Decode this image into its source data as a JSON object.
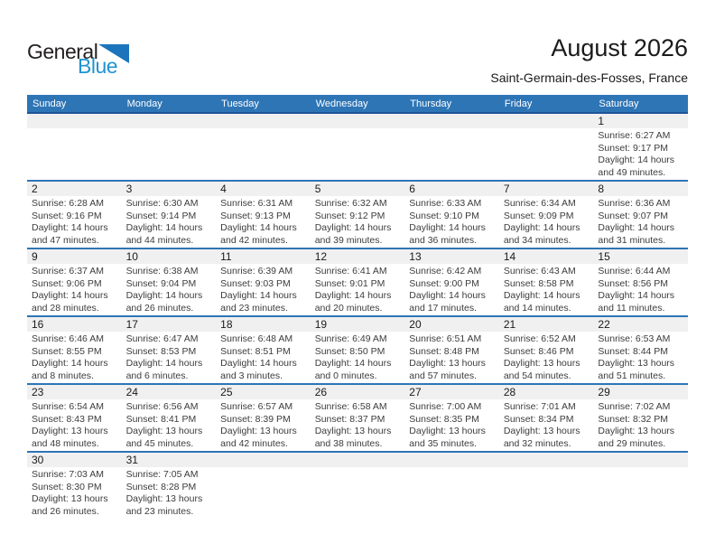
{
  "logo": {
    "general": "General",
    "blue": "Blue"
  },
  "header": {
    "title": "August 2026",
    "subtitle": "Saint-Germain-des-Fosses, France"
  },
  "colors": {
    "header_blue": "#2E75B6",
    "header_underline": "#1F5597",
    "week_separator": "#2E75B6",
    "day_strip_gray": "#F0F0F0",
    "logo_triangle_blue": "#1C75BC",
    "logo_blue_text": "#2193D1"
  },
  "calendar": {
    "weekdays": [
      "Sunday",
      "Monday",
      "Tuesday",
      "Wednesday",
      "Thursday",
      "Friday",
      "Saturday"
    ],
    "weeks": [
      [
        null,
        null,
        null,
        null,
        null,
        null,
        {
          "day": "1",
          "sunrise": "Sunrise: 6:27 AM",
          "sunset": "Sunset: 9:17 PM",
          "daylight_a": "Daylight: 14 hours",
          "daylight_b": "and 49 minutes."
        }
      ],
      [
        {
          "day": "2",
          "sunrise": "Sunrise: 6:28 AM",
          "sunset": "Sunset: 9:16 PM",
          "daylight_a": "Daylight: 14 hours",
          "daylight_b": "and 47 minutes."
        },
        {
          "day": "3",
          "sunrise": "Sunrise: 6:30 AM",
          "sunset": "Sunset: 9:14 PM",
          "daylight_a": "Daylight: 14 hours",
          "daylight_b": "and 44 minutes."
        },
        {
          "day": "4",
          "sunrise": "Sunrise: 6:31 AM",
          "sunset": "Sunset: 9:13 PM",
          "daylight_a": "Daylight: 14 hours",
          "daylight_b": "and 42 minutes."
        },
        {
          "day": "5",
          "sunrise": "Sunrise: 6:32 AM",
          "sunset": "Sunset: 9:12 PM",
          "daylight_a": "Daylight: 14 hours",
          "daylight_b": "and 39 minutes."
        },
        {
          "day": "6",
          "sunrise": "Sunrise: 6:33 AM",
          "sunset": "Sunset: 9:10 PM",
          "daylight_a": "Daylight: 14 hours",
          "daylight_b": "and 36 minutes."
        },
        {
          "day": "7",
          "sunrise": "Sunrise: 6:34 AM",
          "sunset": "Sunset: 9:09 PM",
          "daylight_a": "Daylight: 14 hours",
          "daylight_b": "and 34 minutes."
        },
        {
          "day": "8",
          "sunrise": "Sunrise: 6:36 AM",
          "sunset": "Sunset: 9:07 PM",
          "daylight_a": "Daylight: 14 hours",
          "daylight_b": "and 31 minutes."
        }
      ],
      [
        {
          "day": "9",
          "sunrise": "Sunrise: 6:37 AM",
          "sunset": "Sunset: 9:06 PM",
          "daylight_a": "Daylight: 14 hours",
          "daylight_b": "and 28 minutes."
        },
        {
          "day": "10",
          "sunrise": "Sunrise: 6:38 AM",
          "sunset": "Sunset: 9:04 PM",
          "daylight_a": "Daylight: 14 hours",
          "daylight_b": "and 26 minutes."
        },
        {
          "day": "11",
          "sunrise": "Sunrise: 6:39 AM",
          "sunset": "Sunset: 9:03 PM",
          "daylight_a": "Daylight: 14 hours",
          "daylight_b": "and 23 minutes."
        },
        {
          "day": "12",
          "sunrise": "Sunrise: 6:41 AM",
          "sunset": "Sunset: 9:01 PM",
          "daylight_a": "Daylight: 14 hours",
          "daylight_b": "and 20 minutes."
        },
        {
          "day": "13",
          "sunrise": "Sunrise: 6:42 AM",
          "sunset": "Sunset: 9:00 PM",
          "daylight_a": "Daylight: 14 hours",
          "daylight_b": "and 17 minutes."
        },
        {
          "day": "14",
          "sunrise": "Sunrise: 6:43 AM",
          "sunset": "Sunset: 8:58 PM",
          "daylight_a": "Daylight: 14 hours",
          "daylight_b": "and 14 minutes."
        },
        {
          "day": "15",
          "sunrise": "Sunrise: 6:44 AM",
          "sunset": "Sunset: 8:56 PM",
          "daylight_a": "Daylight: 14 hours",
          "daylight_b": "and 11 minutes."
        }
      ],
      [
        {
          "day": "16",
          "sunrise": "Sunrise: 6:46 AM",
          "sunset": "Sunset: 8:55 PM",
          "daylight_a": "Daylight: 14 hours",
          "daylight_b": "and 8 minutes."
        },
        {
          "day": "17",
          "sunrise": "Sunrise: 6:47 AM",
          "sunset": "Sunset: 8:53 PM",
          "daylight_a": "Daylight: 14 hours",
          "daylight_b": "and 6 minutes."
        },
        {
          "day": "18",
          "sunrise": "Sunrise: 6:48 AM",
          "sunset": "Sunset: 8:51 PM",
          "daylight_a": "Daylight: 14 hours",
          "daylight_b": "and 3 minutes."
        },
        {
          "day": "19",
          "sunrise": "Sunrise: 6:49 AM",
          "sunset": "Sunset: 8:50 PM",
          "daylight_a": "Daylight: 14 hours",
          "daylight_b": "and 0 minutes."
        },
        {
          "day": "20",
          "sunrise": "Sunrise: 6:51 AM",
          "sunset": "Sunset: 8:48 PM",
          "daylight_a": "Daylight: 13 hours",
          "daylight_b": "and 57 minutes."
        },
        {
          "day": "21",
          "sunrise": "Sunrise: 6:52 AM",
          "sunset": "Sunset: 8:46 PM",
          "daylight_a": "Daylight: 13 hours",
          "daylight_b": "and 54 minutes."
        },
        {
          "day": "22",
          "sunrise": "Sunrise: 6:53 AM",
          "sunset": "Sunset: 8:44 PM",
          "daylight_a": "Daylight: 13 hours",
          "daylight_b": "and 51 minutes."
        }
      ],
      [
        {
          "day": "23",
          "sunrise": "Sunrise: 6:54 AM",
          "sunset": "Sunset: 8:43 PM",
          "daylight_a": "Daylight: 13 hours",
          "daylight_b": "and 48 minutes."
        },
        {
          "day": "24",
          "sunrise": "Sunrise: 6:56 AM",
          "sunset": "Sunset: 8:41 PM",
          "daylight_a": "Daylight: 13 hours",
          "daylight_b": "and 45 minutes."
        },
        {
          "day": "25",
          "sunrise": "Sunrise: 6:57 AM",
          "sunset": "Sunset: 8:39 PM",
          "daylight_a": "Daylight: 13 hours",
          "daylight_b": "and 42 minutes."
        },
        {
          "day": "26",
          "sunrise": "Sunrise: 6:58 AM",
          "sunset": "Sunset: 8:37 PM",
          "daylight_a": "Daylight: 13 hours",
          "daylight_b": "and 38 minutes."
        },
        {
          "day": "27",
          "sunrise": "Sunrise: 7:00 AM",
          "sunset": "Sunset: 8:35 PM",
          "daylight_a": "Daylight: 13 hours",
          "daylight_b": "and 35 minutes."
        },
        {
          "day": "28",
          "sunrise": "Sunrise: 7:01 AM",
          "sunset": "Sunset: 8:34 PM",
          "daylight_a": "Daylight: 13 hours",
          "daylight_b": "and 32 minutes."
        },
        {
          "day": "29",
          "sunrise": "Sunrise: 7:02 AM",
          "sunset": "Sunset: 8:32 PM",
          "daylight_a": "Daylight: 13 hours",
          "daylight_b": "and 29 minutes."
        }
      ],
      [
        {
          "day": "30",
          "sunrise": "Sunrise: 7:03 AM",
          "sunset": "Sunset: 8:30 PM",
          "daylight_a": "Daylight: 13 hours",
          "daylight_b": "and 26 minutes."
        },
        {
          "day": "31",
          "sunrise": "Sunrise: 7:05 AM",
          "sunset": "Sunset: 8:28 PM",
          "daylight_a": "Daylight: 13 hours",
          "daylight_b": "and 23 minutes."
        },
        null,
        null,
        null,
        null,
        null
      ]
    ]
  }
}
